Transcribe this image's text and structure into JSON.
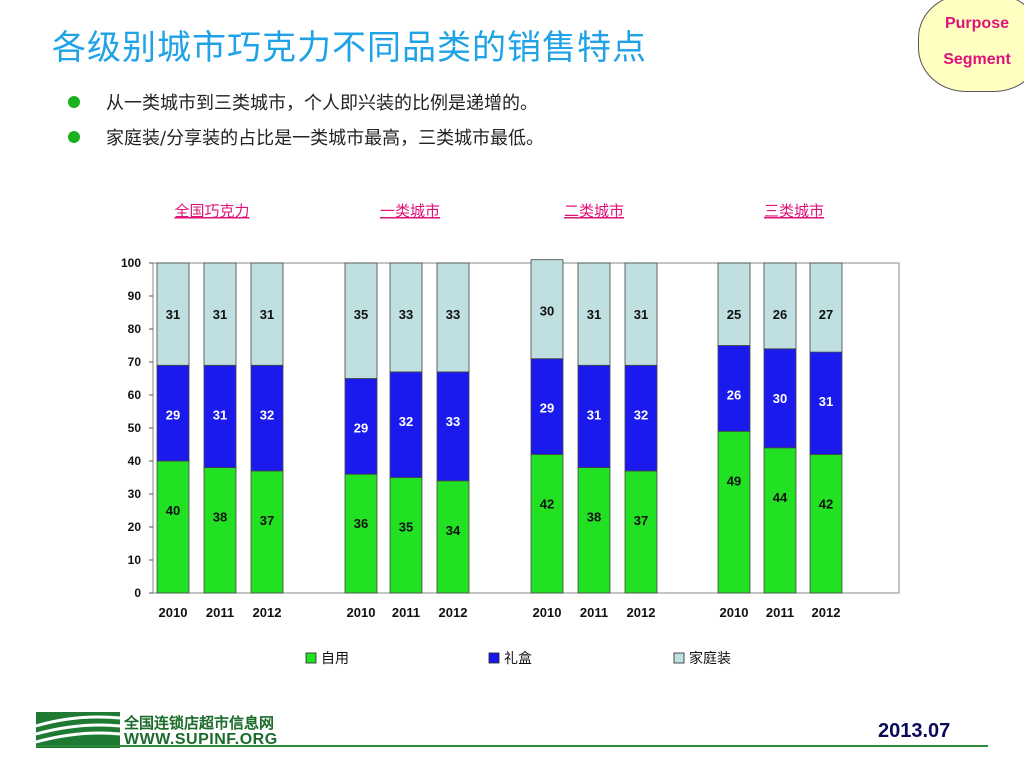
{
  "page": {
    "title": "各级别城市巧克力不同品类的销售特点",
    "corner_label_1": "Purpose",
    "corner_label_2": "Segment",
    "bullets": [
      "从一类城市到三类城市，个人即兴装的比例是递增的。",
      "家庭装/分享装的占比是一类城市最高，三类城市最低。"
    ],
    "footer": {
      "logo_cn": "全国连锁店超市信息网",
      "logo_en": "WWW.SUPINF.ORG",
      "date": "2013.07"
    }
  },
  "colors": {
    "title": "#1fa3e6",
    "self_use": "#22e022",
    "gift_box": "#1a1aee",
    "family": "#bfdfe0",
    "group_link": "#e0127a",
    "bullet": "#19b11e"
  },
  "chart_data": {
    "type": "bar",
    "stacked": true,
    "ylim": [
      0,
      100
    ],
    "yticks": [
      0,
      10,
      20,
      30,
      40,
      50,
      60,
      70,
      80,
      90,
      100
    ],
    "groups": [
      "全国巧克力",
      "一类城市",
      "二类城市",
      "三类城市"
    ],
    "categories": [
      "2010",
      "2011",
      "2012"
    ],
    "series": [
      {
        "name": "自用",
        "color": "#22e022",
        "values": [
          [
            40,
            38,
            37
          ],
          [
            36,
            35,
            34
          ],
          [
            42,
            38,
            37
          ],
          [
            49,
            44,
            42
          ]
        ]
      },
      {
        "name": "礼盒",
        "color": "#1a1aee",
        "values": [
          [
            29,
            31,
            32
          ],
          [
            29,
            32,
            33
          ],
          [
            29,
            31,
            32
          ],
          [
            26,
            30,
            31
          ]
        ]
      },
      {
        "name": "家庭装",
        "color": "#bfdfe0",
        "values": [
          [
            31,
            31,
            31
          ],
          [
            35,
            33,
            33
          ],
          [
            30,
            31,
            31
          ],
          [
            25,
            26,
            27
          ]
        ]
      }
    ],
    "legend_position": "bottom",
    "grid": false
  }
}
